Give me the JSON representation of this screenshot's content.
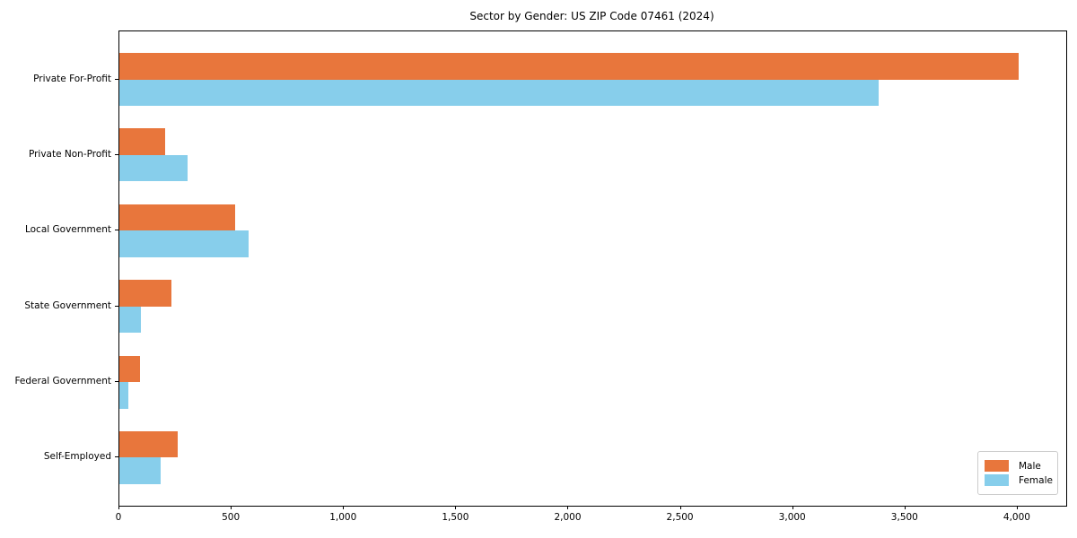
{
  "title": "Sector by Gender: US ZIP Code 07461 (2024)",
  "colors": {
    "male": "#e8763c",
    "female": "#87ceeb",
    "plot_border": "#000000",
    "background": "#ffffff",
    "legend_border": "#cccccc",
    "text": "#000000"
  },
  "legend": {
    "position": "lower right",
    "entries": [
      {
        "label": "Male",
        "color": "#e8763c"
      },
      {
        "label": "Female",
        "color": "#87ceeb"
      }
    ]
  },
  "chart_data": {
    "type": "bar",
    "orientation": "horizontal",
    "title": "Sector by Gender: US ZIP Code 07461 (2024)",
    "categories": [
      "Private For-Profit",
      "Private Non-Profit",
      "Local Government",
      "State Government",
      "Federal Government",
      "Self-Employed"
    ],
    "series": [
      {
        "name": "Male",
        "color": "#e8763c",
        "values": [
          4005,
          205,
          515,
          230,
          90,
          260
        ]
      },
      {
        "name": "Female",
        "color": "#87ceeb",
        "values": [
          3380,
          305,
          575,
          95,
          40,
          185
        ]
      }
    ],
    "xlabel": "",
    "ylabel": "",
    "xlim": [
      0,
      4216
    ],
    "xticks": [
      0,
      500,
      1000,
      1500,
      2000,
      2500,
      3000,
      3500,
      4000
    ],
    "xtick_labels": [
      "0",
      "500",
      "1,000",
      "1,500",
      "2,000",
      "2,500",
      "3,000",
      "3,500",
      "4,000"
    ],
    "grid": false,
    "legend_position": "lower right"
  }
}
